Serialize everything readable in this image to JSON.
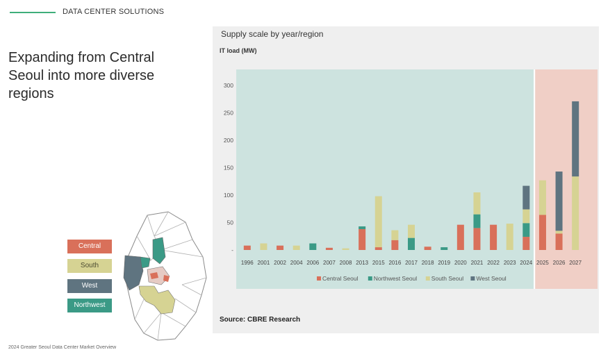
{
  "header": {
    "section_label": "DATA CENTER SOLUTIONS"
  },
  "headline": "Expanding from Central Seoul into more diverse regions",
  "map_legend": [
    {
      "label": "Central",
      "color": "#d9705a",
      "text_color": "#ffffff"
    },
    {
      "label": "South",
      "color": "#d6d393",
      "text_color": "#4a4a30"
    },
    {
      "label": "West",
      "color": "#5f7480",
      "text_color": "#ffffff"
    },
    {
      "label": "Northwest",
      "color": "#3b9a86",
      "text_color": "#ffffff"
    }
  ],
  "footer": "2024 Greater Seoul Data Center Market Overview",
  "chart_data": {
    "type": "bar",
    "stacked": true,
    "title": "Supply scale by year/region",
    "ylabel": "IT load (MW)",
    "source": "Source: CBRE Research",
    "ylim": [
      0,
      300
    ],
    "yticks": [
      50,
      100,
      150,
      200,
      250,
      300
    ],
    "categories": [
      "1996",
      "2001",
      "2002",
      "2004",
      "2006",
      "2007",
      "2008",
      "2013",
      "2015",
      "2016",
      "2017",
      "2018",
      "2019",
      "2020",
      "2021",
      "2022",
      "2023",
      "2024",
      "2025",
      "2026",
      "2027"
    ],
    "series": [
      {
        "name": "Central Seoul",
        "color": "#d9705a",
        "values": [
          8,
          0,
          8,
          0,
          0,
          4,
          0,
          38,
          5,
          18,
          0,
          6,
          0,
          46,
          40,
          46,
          0,
          24,
          64,
          30,
          0
        ]
      },
      {
        "name": "Northwest Seoul",
        "color": "#3b9a86",
        "values": [
          0,
          0,
          0,
          0,
          12,
          0,
          0,
          5,
          0,
          0,
          22,
          0,
          5,
          0,
          25,
          0,
          0,
          25,
          0,
          0,
          0
        ]
      },
      {
        "name": "South Seoul",
        "color": "#d6d393",
        "values": [
          0,
          12,
          0,
          8,
          0,
          0,
          3,
          0,
          93,
          18,
          24,
          0,
          0,
          0,
          40,
          0,
          48,
          25,
          63,
          5,
          134
        ]
      },
      {
        "name": "West Seoul",
        "color": "#5f7480",
        "values": [
          0,
          0,
          0,
          0,
          0,
          0,
          0,
          0,
          0,
          0,
          0,
          0,
          0,
          0,
          0,
          0,
          0,
          43,
          0,
          108,
          137
        ]
      }
    ],
    "legend_position": "bottom",
    "grid": false
  }
}
